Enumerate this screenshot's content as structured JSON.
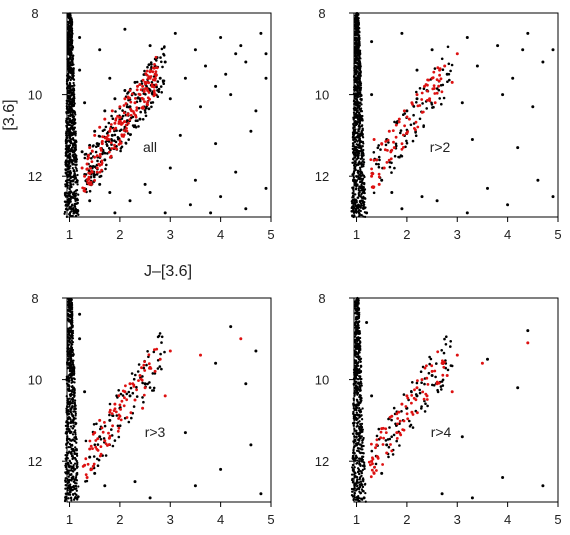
{
  "colors": {
    "field_stars": "#000000",
    "members": "#dd1111",
    "frame": "#000000"
  },
  "axis_titles": {
    "x": "J–[3.6]",
    "y": "[3.6]"
  },
  "chart_data": [
    {
      "type": "scatter",
      "label": "all",
      "xlim": [
        0.95,
        5.0
      ],
      "ylim": [
        13.0,
        8.0
      ],
      "y_inverted": true,
      "xticks": [
        1,
        2,
        3,
        4,
        5
      ],
      "yticks": [
        8,
        10,
        12
      ],
      "xtick_labels": [
        "1",
        "2",
        "3",
        "4",
        "5"
      ],
      "ytick_labels": [
        "8",
        "10",
        "12"
      ],
      "series": [
        {
          "role": "field",
          "points": [
            [
              1.2,
              8.6
            ],
            [
              1.6,
              8.9
            ],
            [
              2.1,
              8.4
            ],
            [
              2.6,
              8.8
            ],
            [
              3.1,
              8.5
            ],
            [
              3.5,
              8.9
            ],
            [
              4.0,
              8.6
            ],
            [
              4.4,
              8.8
            ],
            [
              4.8,
              8.5
            ],
            [
              1.8,
              9.6
            ],
            [
              2.9,
              9.2
            ],
            [
              3.3,
              9.6
            ],
            [
              3.7,
              9.3
            ],
            [
              4.1,
              9.5
            ],
            [
              4.5,
              9.2
            ],
            [
              4.9,
              9.6
            ],
            [
              3.0,
              10.1
            ],
            [
              3.6,
              10.3
            ],
            [
              4.2,
              10.0
            ],
            [
              4.7,
              10.4
            ],
            [
              3.2,
              11.0
            ],
            [
              3.9,
              11.2
            ],
            [
              4.6,
              10.9
            ],
            [
              3.0,
              11.8
            ],
            [
              3.5,
              12.1
            ],
            [
              4.3,
              11.9
            ],
            [
              2.6,
              12.4
            ],
            [
              3.4,
              12.7
            ],
            [
              4.0,
              12.5
            ],
            [
              4.5,
              12.8
            ],
            [
              1.9,
              12.9
            ],
            [
              2.9,
              12.9
            ],
            [
              3.8,
              12.9
            ],
            [
              4.9,
              12.3
            ],
            [
              1.25,
              11.4
            ],
            [
              1.35,
              12.1
            ],
            [
              1.45,
              11.8
            ],
            [
              1.55,
              11.2
            ],
            [
              1.7,
              11.6
            ],
            [
              1.85,
              11.0
            ],
            [
              2.0,
              10.6
            ],
            [
              2.2,
              10.3
            ],
            [
              2.4,
              10.1
            ],
            [
              2.6,
              9.9
            ],
            [
              2.8,
              9.6
            ],
            [
              1.5,
              10.9
            ],
            [
              1.7,
              10.4
            ],
            [
              1.9,
              10.1
            ],
            [
              2.1,
              9.9
            ],
            [
              2.3,
              9.7
            ],
            [
              2.5,
              9.5
            ],
            [
              2.7,
              9.3
            ],
            [
              1.4,
              12.6
            ],
            [
              1.6,
              12.2
            ],
            [
              1.8,
              12.4
            ],
            [
              2.2,
              12.6
            ],
            [
              2.5,
              12.2
            ],
            [
              4.3,
              9.0
            ],
            [
              2.4,
              10.6
            ],
            [
              1.3,
              10.2
            ],
            [
              1.2,
              9.4
            ],
            [
              1.15,
              12.9
            ],
            [
              4.9,
              9.0
            ],
            [
              3.9,
              9.8
            ]
          ]
        },
        {
          "role": "member",
          "points": [
            [
              1.3,
              12.0
            ],
            [
              1.35,
              11.7
            ],
            [
              1.4,
              11.3
            ],
            [
              1.45,
              11.9
            ],
            [
              1.5,
              11.0
            ],
            [
              1.55,
              11.5
            ],
            [
              1.6,
              10.8
            ],
            [
              1.65,
              11.2
            ],
            [
              1.7,
              10.6
            ],
            [
              1.8,
              10.9
            ],
            [
              1.85,
              10.4
            ],
            [
              1.9,
              10.7
            ],
            [
              2.0,
              10.3
            ],
            [
              2.1,
              10.1
            ],
            [
              2.15,
              10.5
            ],
            [
              2.2,
              9.9
            ],
            [
              2.3,
              10.2
            ],
            [
              2.35,
              9.8
            ],
            [
              2.4,
              10.0
            ],
            [
              2.5,
              9.7
            ],
            [
              2.55,
              9.9
            ],
            [
              2.6,
              9.6
            ],
            [
              2.7,
              9.5
            ],
            [
              1.4,
              12.2
            ],
            [
              1.25,
              11.8
            ],
            [
              1.55,
              11.8
            ],
            [
              2.05,
              10.7
            ],
            [
              2.45,
              9.8
            ],
            [
              2.65,
              9.8
            ],
            [
              1.75,
              11.1
            ]
          ]
        }
      ]
    },
    {
      "type": "scatter",
      "label": "r>2",
      "xlim": [
        0.95,
        5.0
      ],
      "ylim": [
        13.0,
        8.0
      ],
      "y_inverted": true,
      "xticks": [
        1,
        2,
        3,
        4,
        5
      ],
      "yticks": [
        8,
        10,
        12
      ],
      "xtick_labels": [
        "1",
        "2",
        "3",
        "4",
        "5"
      ],
      "ytick_labels": [
        "8",
        "10",
        "12"
      ],
      "series": [
        {
          "role": "field",
          "points": [
            [
              1.3,
              8.7
            ],
            [
              1.9,
              8.5
            ],
            [
              2.5,
              8.9
            ],
            [
              3.2,
              8.6
            ],
            [
              3.8,
              8.8
            ],
            [
              4.4,
              8.5
            ],
            [
              4.9,
              8.9
            ],
            [
              2.2,
              9.4
            ],
            [
              3.4,
              9.3
            ],
            [
              4.1,
              9.6
            ],
            [
              4.7,
              9.2
            ],
            [
              3.1,
              10.2
            ],
            [
              3.9,
              10.0
            ],
            [
              4.5,
              10.3
            ],
            [
              3.3,
              11.1
            ],
            [
              4.2,
              11.3
            ],
            [
              3.6,
              12.3
            ],
            [
              4.6,
              12.1
            ],
            [
              2.6,
              12.6
            ],
            [
              3.2,
              12.9
            ],
            [
              4.0,
              12.7
            ],
            [
              1.9,
              12.8
            ],
            [
              4.9,
              12.5
            ],
            [
              1.4,
              11.6
            ],
            [
              1.6,
              11.1
            ],
            [
              1.8,
              10.7
            ],
            [
              2.0,
              10.4
            ],
            [
              2.2,
              10.1
            ],
            [
              2.4,
              9.9
            ],
            [
              1.5,
              12.1
            ],
            [
              1.7,
              12.4
            ],
            [
              2.3,
              12.5
            ],
            [
              1.3,
              10.0
            ],
            [
              2.8,
              9.5
            ],
            [
              4.3,
              8.9
            ],
            [
              1.2,
              12.9
            ]
          ]
        },
        {
          "role": "member",
          "points": [
            [
              1.3,
              12.0
            ],
            [
              1.4,
              11.6
            ],
            [
              1.5,
              11.2
            ],
            [
              1.55,
              11.8
            ],
            [
              1.65,
              10.9
            ],
            [
              1.75,
              11.3
            ],
            [
              1.85,
              10.6
            ],
            [
              1.95,
              10.4
            ],
            [
              2.1,
              10.2
            ],
            [
              2.2,
              10.0
            ],
            [
              2.35,
              9.8
            ],
            [
              2.5,
              9.6
            ],
            [
              2.65,
              9.4
            ],
            [
              2.75,
              9.3
            ],
            [
              2.45,
              10.1
            ],
            [
              1.45,
              12.2
            ],
            [
              2.05,
              10.6
            ],
            [
              1.35,
              11.1
            ],
            [
              3.0,
              9.0
            ],
            [
              2.9,
              9.7
            ]
          ]
        }
      ]
    },
    {
      "type": "scatter",
      "label": "r>3",
      "xlim": [
        0.95,
        5.0
      ],
      "ylim": [
        13.0,
        8.0
      ],
      "y_inverted": true,
      "xticks": [
        1,
        2,
        3,
        4,
        5
      ],
      "yticks": [
        8,
        10,
        12
      ],
      "xtick_labels": [
        "1",
        "2",
        "3",
        "4",
        "5"
      ],
      "ytick_labels": [
        "8",
        "10",
        "12"
      ],
      "series": [
        {
          "role": "field",
          "points": [
            [
              1.2,
              8.4
            ],
            [
              1.2,
              9.0
            ],
            [
              4.2,
              8.7
            ],
            [
              4.7,
              9.3
            ],
            [
              3.9,
              9.6
            ],
            [
              4.5,
              10.1
            ],
            [
              3.3,
              11.3
            ],
            [
              4.6,
              11.6
            ],
            [
              3.5,
              12.6
            ],
            [
              2.6,
              12.9
            ],
            [
              4.0,
              12.2
            ],
            [
              1.5,
              12.3
            ],
            [
              1.7,
              12.6
            ],
            [
              1.3,
              10.3
            ],
            [
              1.4,
              11.9
            ],
            [
              1.6,
              11.4
            ],
            [
              1.8,
              11.0
            ],
            [
              2.0,
              10.7
            ],
            [
              2.2,
              10.4
            ],
            [
              2.5,
              10.1
            ],
            [
              4.8,
              12.8
            ],
            [
              1.15,
              12.9
            ],
            [
              2.3,
              12.5
            ]
          ]
        },
        {
          "role": "member",
          "points": [
            [
              1.3,
              12.1
            ],
            [
              1.4,
              11.7
            ],
            [
              1.5,
              11.3
            ],
            [
              1.6,
              11.0
            ],
            [
              1.7,
              11.5
            ],
            [
              1.8,
              10.8
            ],
            [
              1.9,
              10.6
            ],
            [
              2.0,
              10.9
            ],
            [
              2.1,
              10.3
            ],
            [
              2.2,
              10.1
            ],
            [
              2.3,
              10.5
            ],
            [
              2.4,
              9.9
            ],
            [
              2.5,
              10.2
            ],
            [
              2.6,
              9.7
            ],
            [
              2.7,
              9.8
            ],
            [
              2.8,
              9.5
            ],
            [
              3.0,
              9.3
            ],
            [
              2.9,
              10.4
            ],
            [
              4.4,
              9.0
            ],
            [
              3.6,
              9.4
            ],
            [
              1.35,
              12.4
            ],
            [
              2.45,
              10.7
            ]
          ]
        }
      ]
    },
    {
      "type": "scatter",
      "label": "r>4",
      "xlim": [
        0.95,
        5.0
      ],
      "ylim": [
        13.0,
        8.0
      ],
      "y_inverted": true,
      "xticks": [
        1,
        2,
        3,
        4,
        5
      ],
      "yticks": [
        8,
        10,
        12
      ],
      "xtick_labels": [
        "1",
        "2",
        "3",
        "4",
        "5"
      ],
      "ytick_labels": [
        "8",
        "10",
        "12"
      ],
      "series": [
        {
          "role": "field",
          "points": [
            [
              1.2,
              8.6
            ],
            [
              4.4,
              8.8
            ],
            [
              3.6,
              9.5
            ],
            [
              4.2,
              10.2
            ],
            [
              3.1,
              11.4
            ],
            [
              3.9,
              12.4
            ],
            [
              2.7,
              12.8
            ],
            [
              4.7,
              12.6
            ],
            [
              1.5,
              12.3
            ],
            [
              1.3,
              10.4
            ],
            [
              1.6,
              11.6
            ],
            [
              1.8,
              11.1
            ],
            [
              2.0,
              10.7
            ],
            [
              2.2,
              10.4
            ],
            [
              2.5,
              9.9
            ],
            [
              1.15,
              12.9
            ],
            [
              3.3,
              12.9
            ]
          ]
        },
        {
          "role": "member",
          "points": [
            [
              1.3,
              12.0
            ],
            [
              1.4,
              11.6
            ],
            [
              1.5,
              11.2
            ],
            [
              1.6,
              11.8
            ],
            [
              1.7,
              10.9
            ],
            [
              1.8,
              11.3
            ],
            [
              1.9,
              10.6
            ],
            [
              2.0,
              10.4
            ],
            [
              2.1,
              10.8
            ],
            [
              2.2,
              10.2
            ],
            [
              2.3,
              10.0
            ],
            [
              2.4,
              10.4
            ],
            [
              2.5,
              9.8
            ],
            [
              2.6,
              10.1
            ],
            [
              2.7,
              9.6
            ],
            [
              2.8,
              9.9
            ],
            [
              3.0,
              9.4
            ],
            [
              3.5,
              9.6
            ],
            [
              4.4,
              9.1
            ],
            [
              2.9,
              10.3
            ],
            [
              1.35,
              12.3
            ]
          ]
        }
      ]
    }
  ]
}
